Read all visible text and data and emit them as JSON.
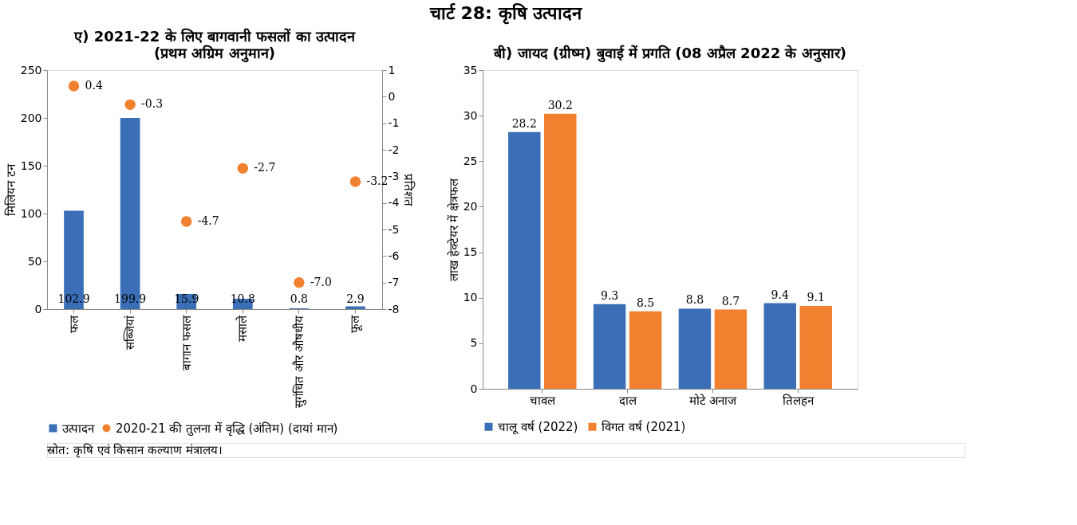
{
  "chart_data": [
    {
      "type": "other",
      "title": "चार्ट 28: कृषि उत्पादन",
      "annotations": [
        "स्रोत: कृषि एवं किसान कल्याण मंत्रालय।"
      ]
    },
    {
      "type": "bar",
      "title": "ए) 2021-22 के लिए बागवानी फसलों का उत्पादन",
      "subtitle": "(प्रथम अग्रिम अनुमान)",
      "ylabel": "मिलियन टन",
      "y2label": "प्रतिशत",
      "categories": [
        "फल",
        "सब्जियां",
        "बागान फसल",
        "मसाले",
        "सुगंधित और औषधीय",
        "फूल"
      ],
      "series": [
        {
          "name": "उत्पादन",
          "color": "#3a6eb7",
          "values": [
            102.9,
            199.9,
            15.9,
            10.8,
            0.8,
            2.9
          ]
        },
        {
          "name": "2020-21 की तुलना में वृद्धि (अंतिम) (दायां मान)",
          "type": "scatter",
          "axis": "y2",
          "color": "#f1802f",
          "values": [
            0.4,
            -0.3,
            -4.7,
            -2.7,
            -7.0,
            -3.2
          ],
          "value_labels": [
            "0.4",
            "-0.3",
            "-4.7",
            "-2.7",
            "-7.0",
            "-3.2"
          ]
        }
      ],
      "ylim": [
        0,
        250
      ],
      "yticks": [
        0,
        50,
        100,
        150,
        200,
        250
      ],
      "y2lim": [
        -8,
        1
      ],
      "y2ticks": [
        -8,
        -7,
        -6,
        -5,
        -4,
        -3,
        -2,
        -1,
        0,
        1
      ],
      "data_labels": true,
      "legend": "bottom",
      "grid": false,
      "marker": "circle"
    },
    {
      "type": "bar",
      "title": "बी) जायद (ग्रीष्म) बुवाई में प्रगति (08 अप्रैल 2022 के अनुसार)",
      "ylabel": "लाख हेक्टेयर में क्षेत्रफल",
      "categories": [
        "चावल",
        "दाल",
        "मोटे अनाज",
        "तिलहन"
      ],
      "series": [
        {
          "name": "चालू वर्ष (2022)",
          "color": "#3a6eb7",
          "values": [
            28.2,
            9.3,
            8.8,
            9.4
          ]
        },
        {
          "name": "विगत वर्ष (2021)",
          "color": "#f1802f",
          "values": [
            30.2,
            8.5,
            8.7,
            9.1
          ]
        }
      ],
      "ylim": [
        0,
        35
      ],
      "yticks": [
        0,
        5,
        10,
        15,
        20,
        25,
        30,
        35
      ],
      "data_labels": true,
      "legend": "bottom",
      "grid": false
    }
  ]
}
